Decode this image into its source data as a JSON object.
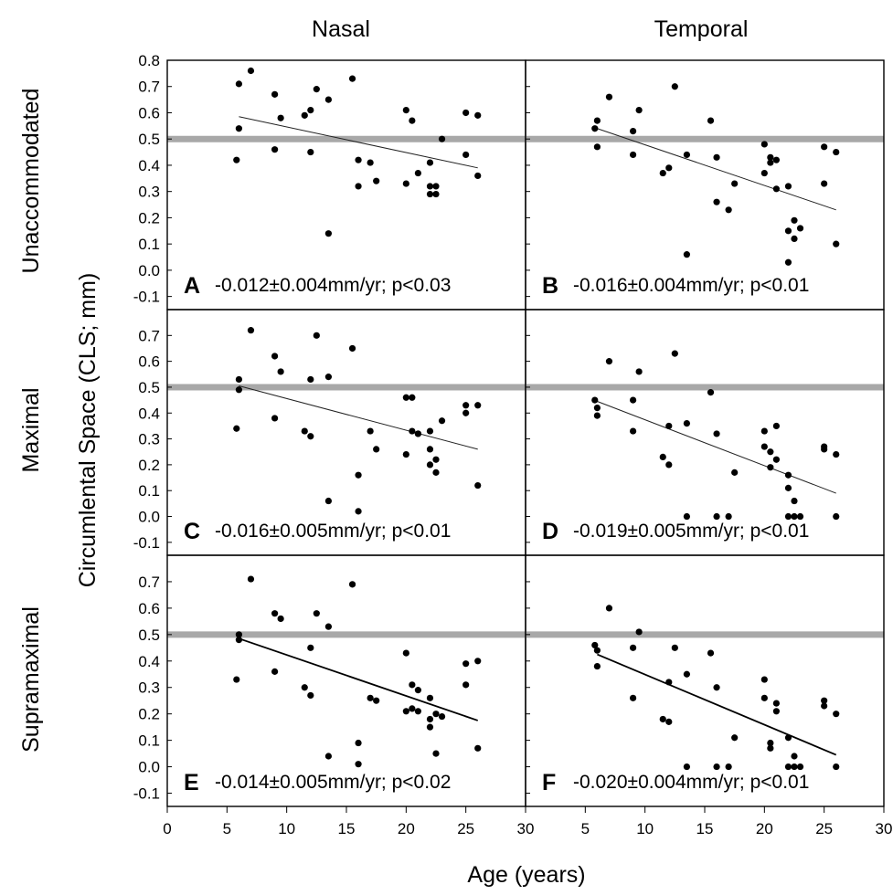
{
  "figure": {
    "column_titles": [
      "Nasal",
      "Temporal"
    ],
    "row_titles": [
      "Unaccommodated",
      "Maximal",
      "Supramaximal"
    ],
    "y_axis_title": "Circumlental Space (CLS; mm)",
    "x_axis_title": "Age (years)"
  },
  "chart_data": [
    {
      "type": "scatter",
      "panel": "A",
      "column": "Nasal",
      "row": "Unaccommodated",
      "annotation": "-0.012±0.004mm/yr; p<0.03",
      "xlim": [
        0,
        30
      ],
      "ylim": [
        -0.15,
        0.8
      ],
      "xticks": [
        0,
        5,
        10,
        15,
        20,
        25,
        30
      ],
      "yticks": [
        "0.8",
        "0.7",
        "0.6",
        "0.5",
        "0.4",
        "0.3",
        "0.2",
        "0.1",
        "0.0",
        "-0.1"
      ],
      "reference_line": 0.5,
      "fit_line": {
        "x": [
          6,
          26
        ],
        "y": [
          0.585,
          0.39
        ]
      },
      "points": [
        [
          6,
          0.71
        ],
        [
          6,
          0.54
        ],
        [
          5.8,
          0.42
        ],
        [
          7,
          0.76
        ],
        [
          9,
          0.67
        ],
        [
          9,
          0.46
        ],
        [
          9.5,
          0.58
        ],
        [
          11.5,
          0.59
        ],
        [
          12,
          0.61
        ],
        [
          12,
          0.45
        ],
        [
          12.5,
          0.69
        ],
        [
          13.5,
          0.65
        ],
        [
          13.5,
          0.14
        ],
        [
          15.5,
          0.73
        ],
        [
          16,
          0.42
        ],
        [
          16,
          0.32
        ],
        [
          17,
          0.41
        ],
        [
          17.5,
          0.34
        ],
        [
          20,
          0.61
        ],
        [
          20,
          0.33
        ],
        [
          20.5,
          0.57
        ],
        [
          21,
          0.37
        ],
        [
          22,
          0.41
        ],
        [
          22,
          0.32
        ],
        [
          22,
          0.29
        ],
        [
          22.5,
          0.32
        ],
        [
          22.5,
          0.29
        ],
        [
          23,
          0.5
        ],
        [
          25,
          0.6
        ],
        [
          25,
          0.44
        ],
        [
          26,
          0.59
        ],
        [
          26,
          0.36
        ]
      ]
    },
    {
      "type": "scatter",
      "panel": "B",
      "column": "Temporal",
      "row": "Unaccommodated",
      "annotation": "-0.016±0.004mm/yr; p<0.01",
      "xlim": [
        0,
        30
      ],
      "ylim": [
        -0.15,
        0.8
      ],
      "xticks": [
        0,
        5,
        10,
        15,
        20,
        25,
        30
      ],
      "yticks": [
        "0.8",
        "0.7",
        "0.6",
        "0.5",
        "0.4",
        "0.3",
        "0.2",
        "0.1",
        "0.0",
        "-0.1"
      ],
      "reference_line": 0.5,
      "fit_line": {
        "x": [
          6,
          26
        ],
        "y": [
          0.54,
          0.23
        ]
      },
      "points": [
        [
          5.8,
          0.54
        ],
        [
          6,
          0.57
        ],
        [
          6,
          0.47
        ],
        [
          7,
          0.66
        ],
        [
          9,
          0.53
        ],
        [
          9,
          0.44
        ],
        [
          9.5,
          0.61
        ],
        [
          11.5,
          0.37
        ],
        [
          12,
          0.39
        ],
        [
          12.5,
          0.7
        ],
        [
          13.5,
          0.44
        ],
        [
          13.5,
          0.06
        ],
        [
          15.5,
          0.57
        ],
        [
          16,
          0.43
        ],
        [
          16,
          0.26
        ],
        [
          17,
          0.23
        ],
        [
          17.5,
          0.33
        ],
        [
          20,
          0.48
        ],
        [
          20,
          0.37
        ],
        [
          20.5,
          0.43
        ],
        [
          20.5,
          0.41
        ],
        [
          21,
          0.42
        ],
        [
          21,
          0.31
        ],
        [
          22,
          0.32
        ],
        [
          22,
          0.15
        ],
        [
          22,
          0.03
        ],
        [
          22.5,
          0.19
        ],
        [
          22.5,
          0.12
        ],
        [
          23,
          0.16
        ],
        [
          25,
          0.47
        ],
        [
          25,
          0.33
        ],
        [
          26,
          0.45
        ],
        [
          26,
          0.1
        ]
      ]
    },
    {
      "type": "scatter",
      "panel": "C",
      "column": "Nasal",
      "row": "Maximal",
      "annotation": "-0.016±0.005mm/yr; p<0.01",
      "xlim": [
        0,
        30
      ],
      "ylim": [
        -0.15,
        0.8
      ],
      "xticks": [
        0,
        5,
        10,
        15,
        20,
        25,
        30
      ],
      "yticks": [
        "0.7",
        "0.6",
        "0.5",
        "0.4",
        "0.3",
        "0.2",
        "0.1",
        "0.0",
        "-0.1"
      ],
      "reference_line": 0.5,
      "fit_line": {
        "x": [
          6,
          26
        ],
        "y": [
          0.505,
          0.26
        ]
      },
      "points": [
        [
          5.8,
          0.34
        ],
        [
          6,
          0.53
        ],
        [
          6,
          0.49
        ],
        [
          7,
          0.72
        ],
        [
          9,
          0.62
        ],
        [
          9,
          0.38
        ],
        [
          9.5,
          0.56
        ],
        [
          11.5,
          0.33
        ],
        [
          12,
          0.53
        ],
        [
          12,
          0.31
        ],
        [
          12.5,
          0.7
        ],
        [
          13.5,
          0.54
        ],
        [
          13.5,
          0.06
        ],
        [
          15.5,
          0.65
        ],
        [
          16,
          0.16
        ],
        [
          16,
          0.02
        ],
        [
          17,
          0.33
        ],
        [
          17.5,
          0.26
        ],
        [
          20,
          0.46
        ],
        [
          20,
          0.24
        ],
        [
          20.5,
          0.46
        ],
        [
          20.5,
          0.33
        ],
        [
          21,
          0.32
        ],
        [
          21,
          0.32
        ],
        [
          22,
          0.33
        ],
        [
          22,
          0.26
        ],
        [
          22,
          0.2
        ],
        [
          22.5,
          0.22
        ],
        [
          22.5,
          0.17
        ],
        [
          23,
          0.37
        ],
        [
          25,
          0.43
        ],
        [
          25,
          0.4
        ],
        [
          26,
          0.43
        ],
        [
          26,
          0.12
        ]
      ]
    },
    {
      "type": "scatter",
      "panel": "D",
      "column": "Temporal",
      "row": "Maximal",
      "annotation": "-0.019±0.005mm/yr; p<0.01",
      "xlim": [
        0,
        30
      ],
      "ylim": [
        -0.15,
        0.8
      ],
      "xticks": [
        0,
        5,
        10,
        15,
        20,
        25,
        30
      ],
      "yticks": [
        "0.7",
        "0.6",
        "0.5",
        "0.4",
        "0.3",
        "0.2",
        "0.1",
        "0.0",
        "-0.1"
      ],
      "reference_line": 0.5,
      "fit_line": {
        "x": [
          6,
          26
        ],
        "y": [
          0.445,
          0.09
        ]
      },
      "points": [
        [
          5.8,
          0.45
        ],
        [
          6,
          0.42
        ],
        [
          6,
          0.39
        ],
        [
          7,
          0.6
        ],
        [
          9,
          0.45
        ],
        [
          9,
          0.33
        ],
        [
          9.5,
          0.56
        ],
        [
          11.5,
          0.23
        ],
        [
          12,
          0.35
        ],
        [
          12,
          0.2
        ],
        [
          12.5,
          0.63
        ],
        [
          13.5,
          0.36
        ],
        [
          13.5,
          0.0
        ],
        [
          15.5,
          0.48
        ],
        [
          16,
          0.32
        ],
        [
          16,
          0.0
        ],
        [
          17,
          0.0
        ],
        [
          17.5,
          0.17
        ],
        [
          20,
          0.33
        ],
        [
          20,
          0.27
        ],
        [
          20.5,
          0.25
        ],
        [
          20.5,
          0.19
        ],
        [
          21,
          0.35
        ],
        [
          21,
          0.22
        ],
        [
          22,
          0.16
        ],
        [
          22,
          0.11
        ],
        [
          22,
          0.0
        ],
        [
          22.5,
          0.06
        ],
        [
          22.5,
          0.0
        ],
        [
          23,
          0.0
        ],
        [
          25,
          0.27
        ],
        [
          25,
          0.26
        ],
        [
          26,
          0.24
        ],
        [
          26,
          0.0
        ]
      ]
    },
    {
      "type": "scatter",
      "panel": "E",
      "column": "Nasal",
      "row": "Supramaximal",
      "annotation": "-0.014±0.005mm/yr; p<0.02",
      "xlim": [
        0,
        30
      ],
      "ylim": [
        -0.15,
        0.8
      ],
      "xticks": [
        0,
        5,
        10,
        15,
        20,
        25,
        30
      ],
      "yticks": [
        "0.7",
        "0.6",
        "0.5",
        "0.4",
        "0.3",
        "0.2",
        "0.1",
        "0.0",
        "-0.1"
      ],
      "reference_line": 0.5,
      "fit_line": {
        "x": [
          6,
          26
        ],
        "y": [
          0.485,
          0.175
        ]
      },
      "points": [
        [
          5.8,
          0.33
        ],
        [
          6,
          0.5
        ],
        [
          6,
          0.48
        ],
        [
          7,
          0.71
        ],
        [
          9,
          0.58
        ],
        [
          9,
          0.36
        ],
        [
          9.5,
          0.56
        ],
        [
          11.5,
          0.3
        ],
        [
          12,
          0.45
        ],
        [
          12,
          0.27
        ],
        [
          12.5,
          0.58
        ],
        [
          13.5,
          0.53
        ],
        [
          13.5,
          0.04
        ],
        [
          15.5,
          0.69
        ],
        [
          16,
          0.09
        ],
        [
          16,
          0.01
        ],
        [
          17,
          0.26
        ],
        [
          17.5,
          0.25
        ],
        [
          20,
          0.43
        ],
        [
          20,
          0.21
        ],
        [
          20.5,
          0.31
        ],
        [
          20.5,
          0.22
        ],
        [
          21,
          0.29
        ],
        [
          21,
          0.21
        ],
        [
          22,
          0.26
        ],
        [
          22,
          0.18
        ],
        [
          22,
          0.15
        ],
        [
          22.5,
          0.2
        ],
        [
          22.5,
          0.05
        ],
        [
          23,
          0.19
        ],
        [
          25,
          0.39
        ],
        [
          25,
          0.31
        ],
        [
          26,
          0.4
        ],
        [
          26,
          0.07
        ]
      ]
    },
    {
      "type": "scatter",
      "panel": "F",
      "column": "Temporal",
      "row": "Supramaximal",
      "annotation": "-0.020±0.004mm/yr; p<0.01",
      "xlim": [
        0,
        30
      ],
      "ylim": [
        -0.15,
        0.8
      ],
      "xticks": [
        0,
        5,
        10,
        15,
        20,
        25,
        30
      ],
      "yticks": [
        "0.7",
        "0.6",
        "0.5",
        "0.4",
        "0.3",
        "0.2",
        "0.1",
        "0.0",
        "-0.1"
      ],
      "reference_line": 0.5,
      "fit_line": {
        "x": [
          6,
          26
        ],
        "y": [
          0.425,
          0.045
        ]
      },
      "points": [
        [
          5.8,
          0.46
        ],
        [
          6,
          0.44
        ],
        [
          6,
          0.38
        ],
        [
          7,
          0.6
        ],
        [
          9,
          0.45
        ],
        [
          9,
          0.26
        ],
        [
          9.5,
          0.51
        ],
        [
          11.5,
          0.18
        ],
        [
          12,
          0.32
        ],
        [
          12,
          0.17
        ],
        [
          12.5,
          0.45
        ],
        [
          13.5,
          0.35
        ],
        [
          13.5,
          0.0
        ],
        [
          15.5,
          0.43
        ],
        [
          16,
          0.3
        ],
        [
          16,
          0.0
        ],
        [
          17,
          0.0
        ],
        [
          17.5,
          0.11
        ],
        [
          20,
          0.33
        ],
        [
          20,
          0.26
        ],
        [
          20.5,
          0.09
        ],
        [
          20.5,
          0.07
        ],
        [
          21,
          0.24
        ],
        [
          21,
          0.21
        ],
        [
          22,
          0.11
        ],
        [
          22,
          0.0
        ],
        [
          22.5,
          0.04
        ],
        [
          22.5,
          0.0
        ],
        [
          23,
          0.0
        ],
        [
          25,
          0.25
        ],
        [
          25,
          0.23
        ],
        [
          26,
          0.2
        ],
        [
          26,
          0.0
        ]
      ]
    }
  ]
}
